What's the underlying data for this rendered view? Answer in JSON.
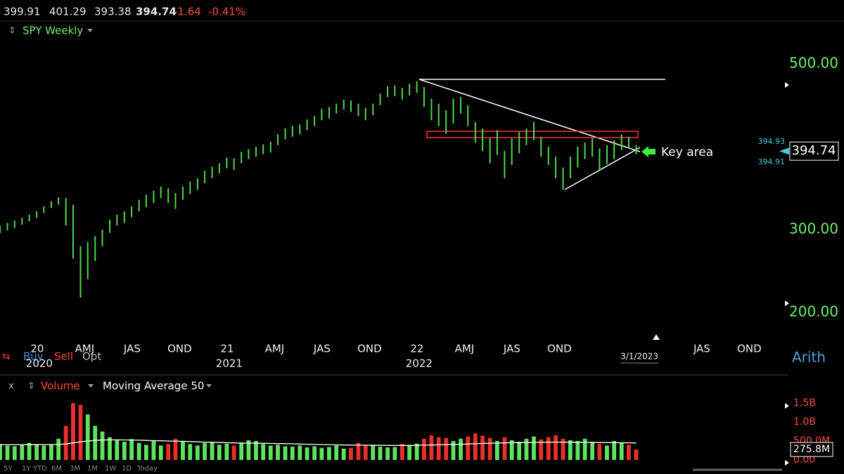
{
  "header": {
    "open": 399.91,
    "high": 401.29,
    "low": 393.38,
    "last": 394.74,
    "change": -1.64,
    "change_pct": {
      "value": -0.41,
      "label": "-0.41%"
    }
  },
  "trade_buttons": [
    "Buy",
    "Sell",
    "Opt"
  ],
  "range_buttons": [
    "5Y",
    "1Y",
    "YTD",
    "6M",
    "3M",
    "1M",
    "1W",
    "1D",
    "Today"
  ],
  "chart_data": [
    {
      "type": "ohlc",
      "title": "SPY Weekly",
      "color": "#4ed84e",
      "log": false,
      "scale_label": "Arith",
      "annotation": "Key area",
      "last_price": 394.74,
      "ask": 394.93,
      "bid": 394.91,
      "cursor_date": {
        "value": 2023.16,
        "label": "3/1/2023"
      },
      "xlim": [
        2019.793,
        2023.904
      ],
      "ylim": [
        170.3,
        551.7
      ],
      "yticks": [
        {
          "value": 500,
          "label": "500.00"
        },
        {
          "value": 300,
          "label": "300.00"
        },
        {
          "value": 200,
          "label": "200.00"
        }
      ],
      "xticks": [
        {
          "value": 2020,
          "label": "20"
        },
        {
          "value": 2020.25,
          "label": "AMJ"
        },
        {
          "value": 2020.5,
          "label": "JAS"
        },
        {
          "value": 2020.75,
          "label": "OND"
        },
        {
          "value": 2021,
          "label": "21"
        },
        {
          "value": 2021.25,
          "label": "AMJ"
        },
        {
          "value": 2021.5,
          "label": "JAS"
        },
        {
          "value": 2021.75,
          "label": "OND"
        },
        {
          "value": 2022,
          "label": "22"
        },
        {
          "value": 2022.25,
          "label": "AMJ"
        },
        {
          "value": 2022.5,
          "label": "JAS"
        },
        {
          "value": 2022.75,
          "label": "OND"
        },
        {
          "value": 2023.5,
          "label": "JAS"
        },
        {
          "value": 2023.75,
          "label": "OND"
        }
      ],
      "year_ticks": [
        2020,
        2021,
        2022
      ],
      "x": [
        2019.793,
        2019.832,
        2019.87,
        2019.909,
        2019.947,
        2019.986,
        2020.024,
        2020.063,
        2020.101,
        2020.14,
        2020.178,
        2020.217,
        2020.255,
        2020.294,
        2020.332,
        2020.371,
        2020.409,
        2020.448,
        2020.486,
        2020.525,
        2020.563,
        2020.602,
        2020.64,
        2020.679,
        2020.717,
        2020.756,
        2020.794,
        2020.833,
        2020.871,
        2020.91,
        2020.948,
        2020.987,
        2021.025,
        2021.064,
        2021.102,
        2021.141,
        2021.179,
        2021.218,
        2021.256,
        2021.295,
        2021.333,
        2021.372,
        2021.41,
        2021.449,
        2021.487,
        2021.526,
        2021.564,
        2021.603,
        2021.641,
        2021.68,
        2021.718,
        2021.757,
        2021.795,
        2021.834,
        2021.872,
        2021.911,
        2021.949,
        2021.988,
        2022.026,
        2022.065,
        2022.103,
        2022.142,
        2022.18,
        2022.219,
        2022.257,
        2022.296,
        2022.334,
        2022.373,
        2022.411,
        2022.45,
        2022.488,
        2022.527,
        2022.565,
        2022.604,
        2022.642,
        2022.681,
        2022.719,
        2022.758,
        2022.796,
        2022.835,
        2022.873,
        2022.912,
        2022.95,
        2022.989,
        2023.027,
        2023.066,
        2023.104,
        2023.143
      ],
      "high": [
        305,
        308,
        311,
        314,
        318,
        322,
        328,
        334,
        339,
        338,
        330,
        280,
        285,
        292,
        300,
        312,
        318,
        322,
        328,
        336,
        342,
        347,
        352,
        350,
        344,
        352,
        358,
        362,
        371,
        376,
        380,
        387,
        386,
        394,
        397,
        400,
        403,
        406,
        415,
        422,
        425,
        427,
        433,
        437,
        446,
        448,
        452,
        457,
        456,
        452,
        447,
        452,
        464,
        473,
        474,
        471,
        476,
        479,
        472,
        458,
        452,
        444,
        458,
        460,
        450,
        430,
        422,
        410,
        420,
        395,
        410,
        418,
        422,
        430,
        412,
        400,
        388,
        375,
        388,
        400,
        405,
        410,
        398,
        402,
        408,
        415,
        412,
        402
      ],
      "low": [
        296,
        299,
        302,
        306,
        310,
        314,
        320,
        326,
        330,
        305,
        265,
        218,
        240,
        262,
        280,
        296,
        305,
        308,
        315,
        322,
        327,
        332,
        338,
        332,
        325,
        336,
        343,
        348,
        356,
        362,
        368,
        374,
        372,
        380,
        385,
        388,
        391,
        393,
        402,
        409,
        412,
        415,
        420,
        425,
        432,
        434,
        440,
        445,
        442,
        437,
        432,
        438,
        450,
        460,
        461,
        457,
        462,
        465,
        448,
        432,
        425,
        416,
        428,
        440,
        425,
        405,
        395,
        380,
        390,
        362,
        378,
        392,
        402,
        408,
        388,
        378,
        362,
        348,
        362,
        375,
        385,
        388,
        372,
        379,
        385,
        396,
        398,
        391
      ]
    },
    {
      "type": "bar",
      "xlim": [
        2019.793,
        2023.904
      ],
      "ylim": [
        0,
        1759
      ],
      "yticks": [
        {
          "value": 0,
          "label": "0.00"
        },
        {
          "value": 500,
          "label": "500.0M"
        },
        {
          "value": 1000,
          "label": "1.0B"
        },
        {
          "value": 1500,
          "label": "1.5B"
        }
      ],
      "last_volume": {
        "value": 275.8,
        "label": "275.8M"
      },
      "series": [
        {
          "name": "Volume",
          "type": "bar",
          "colors": [
            "#5ee35e",
            "#5ee35e",
            "#5ee35e",
            "#5ee35e",
            "#5ee35e",
            "#5ee35e",
            "#5ee35e",
            "#5ee35e",
            "#5ee35e",
            "#e8302a",
            "#e8302a",
            "#e8302a",
            "#5ee35e",
            "#5ee35e",
            "#5ee35e",
            "#5ee35e",
            "#5ee35e",
            "#5ee35e",
            "#5ee35e",
            "#5ee35e",
            "#5ee35e",
            "#5ee35e",
            "#5ee35e",
            "#e8302a",
            "#e8302a",
            "#5ee35e",
            "#5ee35e",
            "#5ee35e",
            "#5ee35e",
            "#5ee35e",
            "#5ee35e",
            "#5ee35e",
            "#e8302a",
            "#5ee35e",
            "#5ee35e",
            "#5ee35e",
            "#5ee35e",
            "#5ee35e",
            "#5ee35e",
            "#5ee35e",
            "#5ee35e",
            "#5ee35e",
            "#5ee35e",
            "#5ee35e",
            "#5ee35e",
            "#5ee35e",
            "#5ee35e",
            "#5ee35e",
            "#e8302a",
            "#e8302a",
            "#e8302a",
            "#5ee35e",
            "#5ee35e",
            "#5ee35e",
            "#5ee35e",
            "#e8302a",
            "#5ee35e",
            "#5ee35e",
            "#e8302a",
            "#e8302a",
            "#e8302a",
            "#e8302a",
            "#5ee35e",
            "#5ee35e",
            "#e8302a",
            "#e8302a",
            "#e8302a",
            "#e8302a",
            "#5ee35e",
            "#e8302a",
            "#5ee35e",
            "#5ee35e",
            "#5ee35e",
            "#5ee35e",
            "#e8302a",
            "#e8302a",
            "#e8302a",
            "#e8302a",
            "#5ee35e",
            "#5ee35e",
            "#5ee35e",
            "#5ee35e",
            "#e8302a",
            "#5ee35e",
            "#5ee35e",
            "#5ee35e",
            "#e8302a",
            "#e8302a"
          ],
          "values": [
            420,
            380,
            360,
            400,
            450,
            420,
            380,
            400,
            560,
            900,
            1500,
            1450,
            1200,
            900,
            750,
            600,
            520,
            480,
            550,
            450,
            400,
            500,
            380,
            420,
            560,
            500,
            420,
            380,
            450,
            480,
            400,
            430,
            380,
            460,
            520,
            500,
            420,
            380,
            400,
            360,
            350,
            380,
            330,
            360,
            320,
            340,
            380,
            300,
            320,
            450,
            380,
            400,
            350,
            330,
            340,
            420,
            380,
            430,
            560,
            650,
            600,
            580,
            500,
            560,
            620,
            700,
            640,
            580,
            500,
            600,
            520,
            480,
            560,
            620,
            540,
            600,
            650,
            560,
            520,
            500,
            560,
            480,
            420,
            380,
            500,
            460,
            400,
            275.8
          ]
        },
        {
          "name": "Moving Average 50",
          "type": "line",
          "color": "#ffffff",
          "values": [
            400,
            400,
            400,
            400,
            402,
            404,
            405,
            406,
            410,
            420,
            450,
            480,
            500,
            515,
            525,
            530,
            530,
            528,
            525,
            520,
            515,
            510,
            505,
            500,
            495,
            490,
            485,
            478,
            470,
            465,
            460,
            455,
            450,
            445,
            442,
            440,
            438,
            435,
            432,
            430,
            425,
            420,
            415,
            410,
            405,
            400,
            398,
            395,
            392,
            390,
            388,
            386,
            385,
            384,
            383,
            383,
            384,
            386,
            390,
            395,
            400,
            405,
            410,
            415,
            420,
            428,
            435,
            440,
            445,
            450,
            455,
            458,
            460,
            462,
            465,
            468,
            470,
            470,
            468,
            466,
            464,
            462,
            460,
            458,
            456,
            454,
            452,
            450
          ]
        }
      ]
    }
  ]
}
